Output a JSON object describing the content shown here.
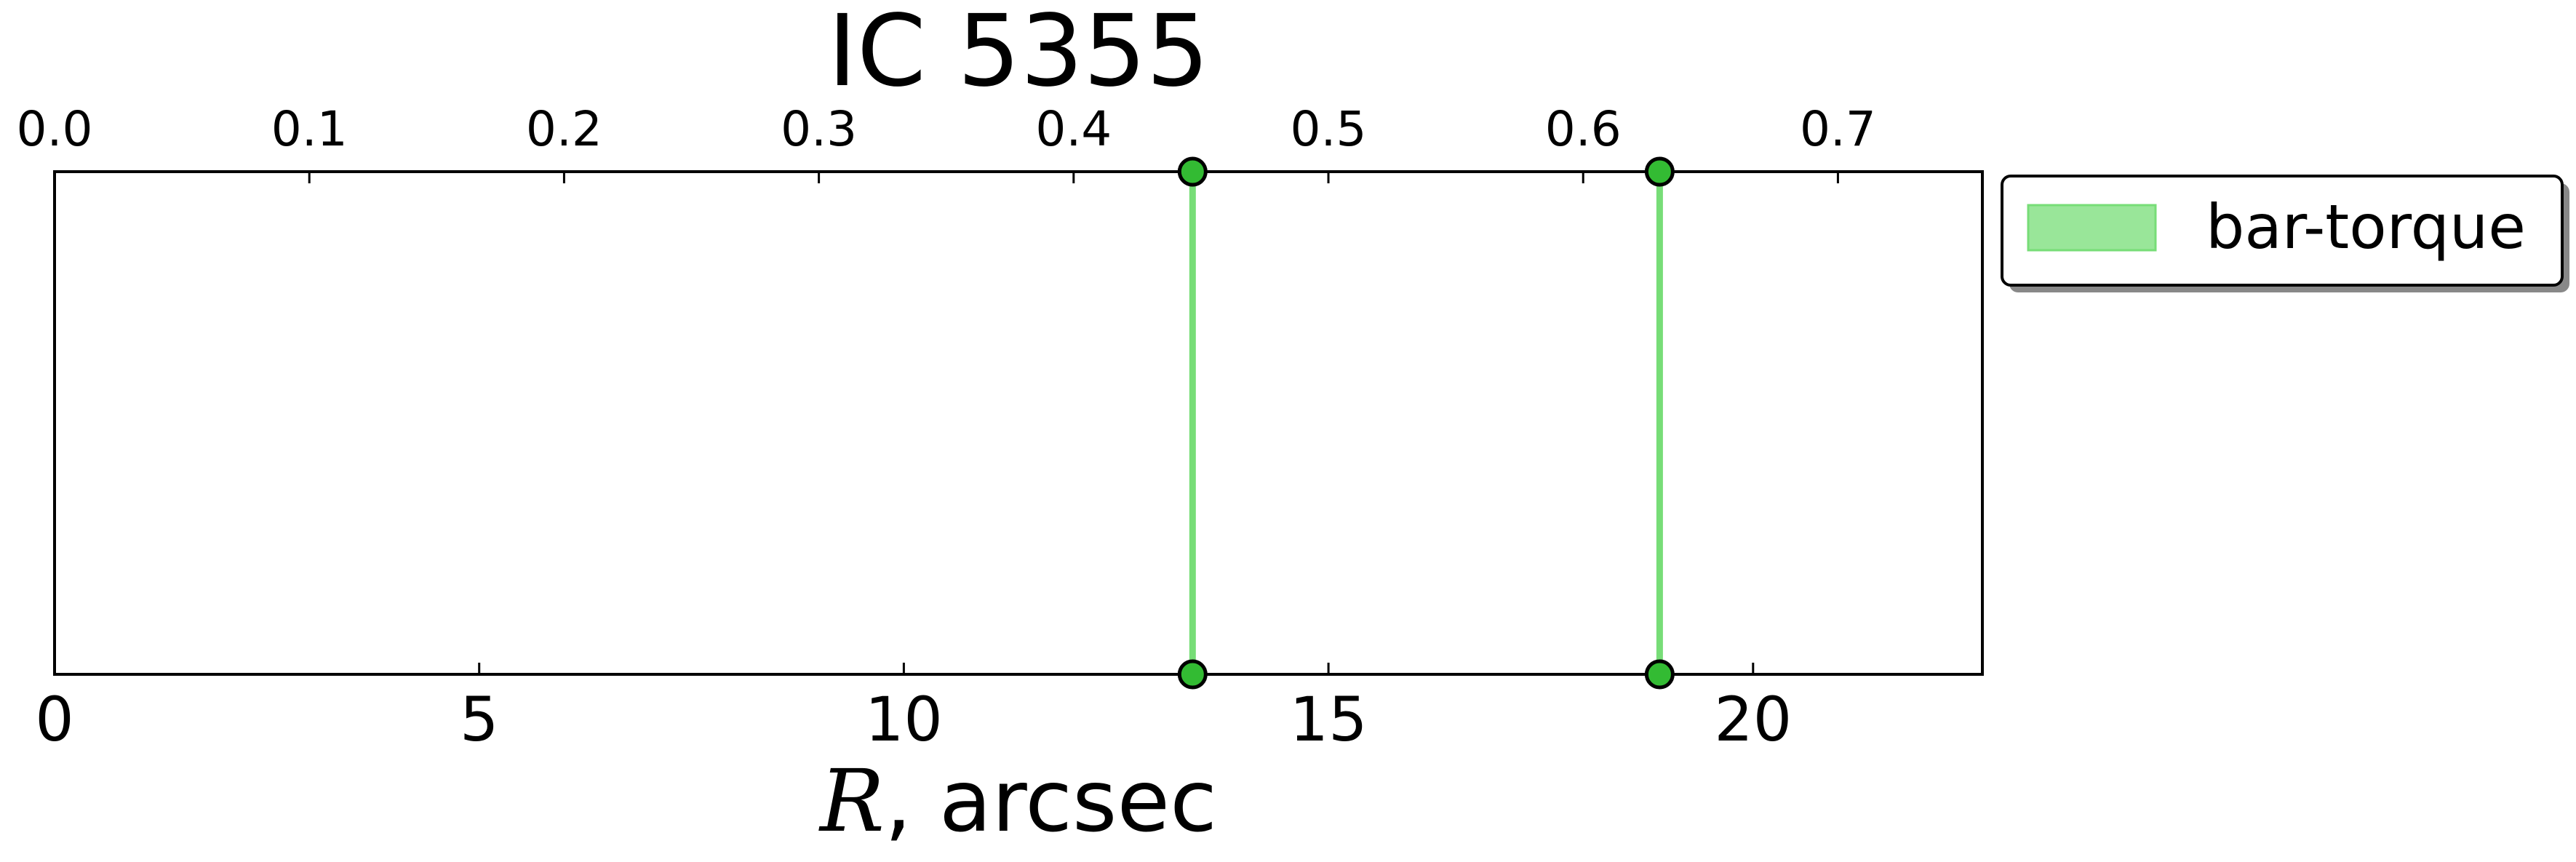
{
  "chart_data": {
    "type": "line",
    "title": "IC 5355",
    "xlabel_symbol": "R",
    "xlabel_rest": ", arcsec",
    "xlim": [
      0,
      22.7
    ],
    "top_xlim": [
      0,
      0.7567
    ],
    "x_ticks": [
      0,
      5,
      10,
      15,
      20
    ],
    "x_tick_labels": [
      "0",
      "5",
      "10",
      "15",
      "20"
    ],
    "top_ticks": [
      0.0,
      0.1,
      0.2,
      0.3,
      0.4,
      0.5,
      0.6,
      0.7
    ],
    "top_tick_labels": [
      "0.0",
      "0.1",
      "0.2",
      "0.3",
      "0.4",
      "0.5",
      "0.6",
      "0.7"
    ],
    "grid": false,
    "legend_position": "outside-top-right",
    "series": [
      {
        "name": "bar-torque",
        "color": "#77dd77",
        "marker_color": "#33bb33",
        "x_values": [
          13.4,
          18.9
        ]
      }
    ]
  }
}
